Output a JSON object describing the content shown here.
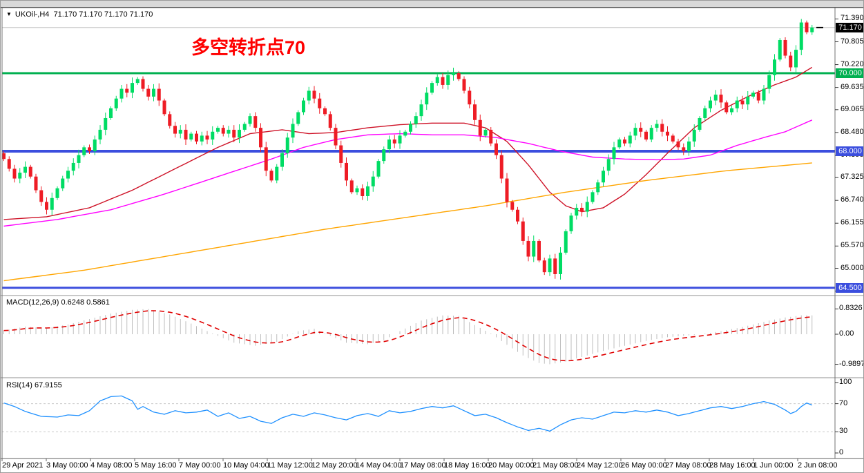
{
  "title": {
    "arrow": "▼",
    "symbol_period": "UKOil-,H4",
    "ohlc": "71.170 71.170 71.170 71.170"
  },
  "annotation": {
    "text": "多空转折点70",
    "color": "#FF0000"
  },
  "colors": {
    "bull_candle": "#00DC64",
    "bear_candle": "#EE1C25",
    "ma_red": "#CE1126",
    "ma_magenta": "#FF00FF",
    "ma_orange": "#FFA500",
    "hline_green": "#00B050",
    "hline_blue": "#3B4EDE",
    "macd_histogram": "#BEBEBE",
    "macd_signal": "#E00000",
    "rsi_line": "#1E90FF",
    "rsi_level": "#C8C8C8",
    "current_price_line": "#B8B8B8",
    "current_price_box": "#000000",
    "axis_border": "#707070",
    "pane_border": "#909090"
  },
  "main_chart": {
    "price_axis_labels": [
      {
        "text": "71.390",
        "value": 71.39
      },
      {
        "text": "70.805",
        "value": 70.805
      },
      {
        "text": "70.220",
        "value": 70.22
      },
      {
        "text": "69.635",
        "value": 69.635
      },
      {
        "text": "69.065",
        "value": 69.065
      },
      {
        "text": "68.480",
        "value": 68.48
      },
      {
        "text": "67.895",
        "value": 67.895
      },
      {
        "text": "67.325",
        "value": 67.325
      },
      {
        "text": "66.740",
        "value": 66.74
      },
      {
        "text": "66.155",
        "value": 66.155
      },
      {
        "text": "65.570",
        "value": 65.57
      },
      {
        "text": "65.000",
        "value": 65.0
      },
      {
        "text": "64.415",
        "value": 64.415
      }
    ],
    "current_price": {
      "text": "71.170",
      "value": 71.17
    },
    "hlines": [
      {
        "label": "70.000",
        "value": 70.0,
        "color": "#00B050",
        "width": 3
      },
      {
        "label": "68.000",
        "value": 68.0,
        "color": "#3B4EDE",
        "width": 4
      },
      {
        "label": "64.500",
        "value": 64.5,
        "color": "#3B4EDE",
        "width": 3
      }
    ]
  },
  "macd_panel": {
    "label": "MACD(12,26,9) 0.6248 0.5861",
    "axis_labels": [
      {
        "text": "0.8326",
        "value": 0.8326
      },
      {
        "text": "0.00",
        "value": 0
      },
      {
        "text": "-0.9897",
        "value": -0.9897
      }
    ]
  },
  "rsi_panel": {
    "label": "RSI(14) 67.9155",
    "axis_labels": [
      {
        "text": "100",
        "value": 100
      },
      {
        "text": "70",
        "value": 70
      },
      {
        "text": "30",
        "value": 30
      },
      {
        "text": "0",
        "value": 0
      }
    ],
    "levels": [
      70,
      30
    ]
  },
  "x_axis": {
    "labels": [
      "29 Apr 2021",
      "3 May 00:00",
      "4 May 08:00",
      "5 May 16:00",
      "7 May 00:00",
      "10 May 04:00",
      "11 May 12:00",
      "12 May 20:00",
      "14 May 04:00",
      "17 May 08:00",
      "18 May 16:00",
      "20 May 00:00",
      "21 May 08:00",
      "24 May 12:00",
      "26 May 00:00",
      "27 May 08:00",
      "28 May 16:00",
      "1 Jun 00:00",
      "2 Jun 08:00"
    ]
  },
  "chart_data": {
    "type": "candlestick",
    "symbol": "UKOil-",
    "timeframe": "H4",
    "title": "UKOil-,H4",
    "ylim": [
      64.35,
      71.62
    ],
    "bars": 152,
    "first_open": 67.95,
    "closes": [
      67.8,
      67.55,
      67.3,
      67.45,
      67.6,
      67.35,
      67.0,
      66.7,
      66.5,
      66.8,
      67.05,
      67.3,
      67.5,
      67.7,
      67.9,
      68.1,
      68.0,
      68.3,
      68.55,
      68.85,
      69.1,
      69.35,
      69.6,
      69.5,
      69.75,
      69.85,
      69.6,
      69.4,
      69.6,
      69.3,
      68.95,
      68.65,
      68.45,
      68.55,
      68.3,
      68.45,
      68.25,
      68.4,
      68.3,
      68.5,
      68.6,
      68.45,
      68.55,
      68.35,
      68.55,
      68.7,
      68.9,
      68.6,
      68.1,
      67.5,
      67.25,
      67.6,
      67.95,
      68.35,
      68.7,
      69.0,
      69.3,
      69.55,
      69.35,
      69.1,
      68.95,
      68.6,
      68.15,
      67.7,
      67.25,
      66.95,
      67.05,
      66.85,
      67.1,
      67.35,
      67.75,
      68.05,
      68.3,
      68.2,
      68.4,
      68.5,
      68.7,
      68.9,
      69.2,
      69.5,
      69.75,
      69.9,
      69.7,
      69.95,
      70.0,
      69.85,
      69.55,
      69.2,
      68.8,
      68.4,
      68.55,
      68.2,
      67.9,
      67.3,
      66.7,
      66.5,
      66.2,
      65.7,
      65.3,
      65.7,
      65.2,
      64.9,
      65.25,
      64.85,
      65.4,
      65.95,
      66.35,
      66.55,
      66.45,
      66.7,
      66.95,
      67.2,
      67.5,
      67.8,
      68.1,
      68.3,
      68.2,
      68.4,
      68.6,
      68.5,
      68.3,
      68.6,
      68.7,
      68.5,
      68.4,
      68.25,
      68.1,
      68.0,
      68.25,
      68.55,
      68.85,
      69.1,
      69.3,
      69.45,
      69.25,
      69.0,
      69.1,
      69.3,
      69.2,
      69.4,
      69.5,
      69.3,
      69.6,
      69.95,
      70.35,
      70.85,
      70.45,
      70.15,
      70.6,
      71.3,
      71.05,
      71.17
    ],
    "high_clamp": 71.39,
    "horizontal_lines": [
      70.0,
      68.0,
      64.5
    ],
    "moving_averages": [
      {
        "name": "ma-fast-red",
        "anchors": [
          [
            0,
            66.25
          ],
          [
            8,
            66.32
          ],
          [
            16,
            66.55
          ],
          [
            24,
            67.0
          ],
          [
            32,
            67.55
          ],
          [
            40,
            68.1
          ],
          [
            46,
            68.45
          ],
          [
            52,
            68.55
          ],
          [
            57,
            68.45
          ],
          [
            62,
            68.48
          ],
          [
            68,
            68.6
          ],
          [
            74,
            68.68
          ],
          [
            80,
            68.72
          ],
          [
            86,
            68.72
          ],
          [
            90,
            68.6
          ],
          [
            94,
            68.25
          ],
          [
            98,
            67.65
          ],
          [
            102,
            66.95
          ],
          [
            105,
            66.6
          ],
          [
            108,
            66.45
          ],
          [
            112,
            66.55
          ],
          [
            116,
            66.9
          ],
          [
            120,
            67.4
          ],
          [
            124,
            67.95
          ],
          [
            129,
            68.6
          ],
          [
            134,
            69.05
          ],
          [
            139,
            69.4
          ],
          [
            144,
            69.7
          ],
          [
            148,
            69.9
          ],
          [
            151,
            70.15
          ]
        ]
      },
      {
        "name": "ma-mid-magenta",
        "anchors": [
          [
            0,
            66.08
          ],
          [
            10,
            66.25
          ],
          [
            20,
            66.5
          ],
          [
            30,
            66.9
          ],
          [
            40,
            67.35
          ],
          [
            50,
            67.8
          ],
          [
            56,
            68.1
          ],
          [
            62,
            68.3
          ],
          [
            68,
            68.42
          ],
          [
            74,
            68.45
          ],
          [
            80,
            68.42
          ],
          [
            86,
            68.42
          ],
          [
            92,
            68.35
          ],
          [
            98,
            68.2
          ],
          [
            104,
            68.0
          ],
          [
            110,
            67.85
          ],
          [
            116,
            67.8
          ],
          [
            122,
            67.78
          ],
          [
            127,
            67.8
          ],
          [
            132,
            67.9
          ],
          [
            137,
            68.15
          ],
          [
            142,
            68.35
          ],
          [
            146,
            68.5
          ],
          [
            151,
            68.8
          ]
        ]
      },
      {
        "name": "ma-slow-orange",
        "anchors": [
          [
            0,
            64.68
          ],
          [
            15,
            64.95
          ],
          [
            30,
            65.3
          ],
          [
            45,
            65.65
          ],
          [
            60,
            66.0
          ],
          [
            75,
            66.3
          ],
          [
            90,
            66.6
          ],
          [
            105,
            66.95
          ],
          [
            120,
            67.25
          ],
          [
            135,
            67.5
          ],
          [
            151,
            67.7
          ]
        ]
      }
    ],
    "macd": {
      "params": [
        12,
        26,
        9
      ],
      "current_main": 0.6248,
      "current_signal": 0.5861,
      "range": [
        -0.9897,
        0.8326
      ],
      "anchors": [
        [
          0,
          0.12
        ],
        [
          4,
          0.25
        ],
        [
          8,
          0.2
        ],
        [
          12,
          0.32
        ],
        [
          16,
          0.5
        ],
        [
          20,
          0.68
        ],
        [
          24,
          0.8
        ],
        [
          27,
          0.83
        ],
        [
          31,
          0.65
        ],
        [
          35,
          0.35
        ],
        [
          39,
          0.02
        ],
        [
          43,
          -0.28
        ],
        [
          47,
          -0.38
        ],
        [
          51,
          -0.25
        ],
        [
          55,
          0.1
        ],
        [
          58,
          0.18
        ],
        [
          61,
          -0.05
        ],
        [
          64,
          -0.28
        ],
        [
          68,
          -0.33
        ],
        [
          71,
          -0.2
        ],
        [
          74,
          0.1
        ],
        [
          78,
          0.45
        ],
        [
          82,
          0.62
        ],
        [
          85,
          0.6
        ],
        [
          88,
          0.3
        ],
        [
          91,
          0.02
        ],
        [
          94,
          -0.35
        ],
        [
          97,
          -0.7
        ],
        [
          100,
          -0.95
        ],
        [
          102,
          -0.99
        ],
        [
          105,
          -0.9
        ],
        [
          108,
          -0.75
        ],
        [
          112,
          -0.55
        ],
        [
          116,
          -0.38
        ],
        [
          120,
          -0.22
        ],
        [
          124,
          -0.1
        ],
        [
          128,
          -0.04
        ],
        [
          131,
          0.02
        ],
        [
          134,
          0.1
        ],
        [
          137,
          0.2
        ],
        [
          140,
          0.32
        ],
        [
          143,
          0.45
        ],
        [
          146,
          0.55
        ],
        [
          149,
          0.62
        ],
        [
          151,
          0.62
        ]
      ]
    },
    "rsi": {
      "period": 14,
      "current": 67.9155,
      "levels": [
        70,
        30
      ],
      "anchors": [
        [
          0,
          71
        ],
        [
          2,
          66
        ],
        [
          4,
          59
        ],
        [
          7,
          52
        ],
        [
          10,
          51
        ],
        [
          12,
          54
        ],
        [
          14,
          53
        ],
        [
          16,
          60
        ],
        [
          18,
          74
        ],
        [
          20,
          80
        ],
        [
          22,
          81
        ],
        [
          24,
          74
        ],
        [
          25,
          62
        ],
        [
          26,
          66
        ],
        [
          28,
          58
        ],
        [
          30,
          55
        ],
        [
          32,
          60
        ],
        [
          34,
          57
        ],
        [
          36,
          58
        ],
        [
          38,
          61
        ],
        [
          40,
          52
        ],
        [
          42,
          57
        ],
        [
          44,
          49
        ],
        [
          46,
          52
        ],
        [
          48,
          45
        ],
        [
          50,
          42
        ],
        [
          52,
          50
        ],
        [
          54,
          55
        ],
        [
          56,
          52
        ],
        [
          58,
          57
        ],
        [
          60,
          54
        ],
        [
          62,
          50
        ],
        [
          64,
          47
        ],
        [
          66,
          53
        ],
        [
          68,
          56
        ],
        [
          70,
          52
        ],
        [
          72,
          60
        ],
        [
          74,
          57
        ],
        [
          76,
          59
        ],
        [
          78,
          63
        ],
        [
          80,
          66
        ],
        [
          82,
          64
        ],
        [
          84,
          67
        ],
        [
          86,
          60
        ],
        [
          88,
          53
        ],
        [
          90,
          55
        ],
        [
          92,
          50
        ],
        [
          94,
          43
        ],
        [
          96,
          37
        ],
        [
          98,
          32
        ],
        [
          100,
          35
        ],
        [
          102,
          31
        ],
        [
          104,
          40
        ],
        [
          106,
          47
        ],
        [
          108,
          50
        ],
        [
          110,
          48
        ],
        [
          112,
          53
        ],
        [
          114,
          58
        ],
        [
          116,
          57
        ],
        [
          118,
          60
        ],
        [
          120,
          58
        ],
        [
          122,
          61
        ],
        [
          124,
          58
        ],
        [
          126,
          53
        ],
        [
          128,
          56
        ],
        [
          130,
          60
        ],
        [
          132,
          64
        ],
        [
          134,
          66
        ],
        [
          136,
          63
        ],
        [
          138,
          66
        ],
        [
          140,
          70
        ],
        [
          142,
          73
        ],
        [
          144,
          69
        ],
        [
          146,
          61
        ],
        [
          147,
          56
        ],
        [
          148,
          59
        ],
        [
          149,
          66
        ],
        [
          150,
          71
        ],
        [
          151,
          68
        ]
      ]
    }
  }
}
